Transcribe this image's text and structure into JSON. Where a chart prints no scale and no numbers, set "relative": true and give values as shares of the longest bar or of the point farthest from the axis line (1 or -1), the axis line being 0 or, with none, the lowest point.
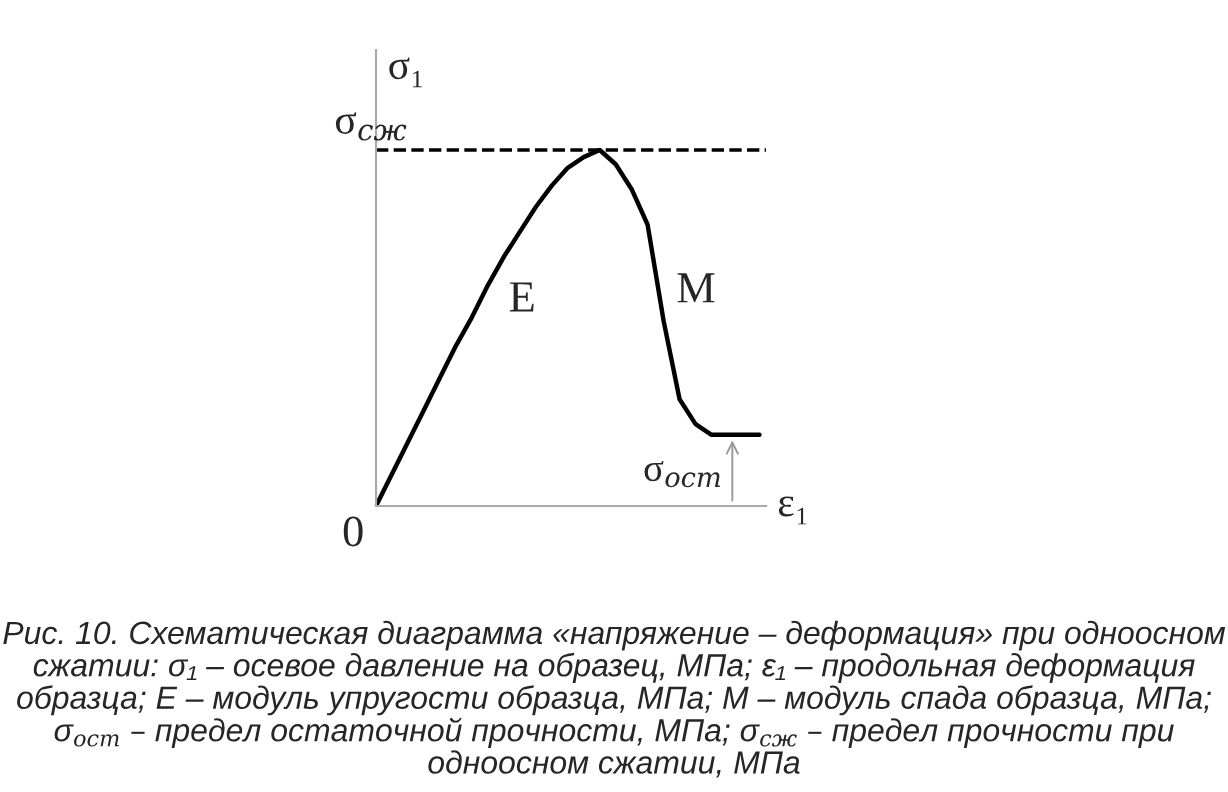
{
  "chart_data": {
    "type": "line",
    "relative": true,
    "marker": "none",
    "line_style": "solid",
    "xlabel": "ε₁",
    "ylabel": "σ₁",
    "categories": [
      null,
      null,
      null,
      null,
      null,
      null,
      null,
      null,
      null,
      null,
      null,
      null,
      null,
      null,
      null,
      null,
      null,
      null,
      null,
      null,
      null,
      null,
      null,
      null,
      null
    ],
    "series": [
      {
        "color": "#000000",
        "values": [
          0,
          0.09,
          0.18,
          0.27,
          0.36,
          0.45,
          0.53,
          0.62,
          0.7,
          0.77,
          0.84,
          0.9,
          0.95,
          0.98,
          1,
          0.96,
          0.89,
          0.79,
          0.52,
          0.3,
          0.23,
          0.2,
          0.2,
          0.2,
          0.2
        ]
      }
    ],
    "ref_lines": [
      {
        "axis": "y",
        "value": 1,
        "label": "σ$_{сж}$",
        "line_style": "dashed",
        "color": "#000000"
      }
    ],
    "annotations": [
      "0",
      "E",
      "M",
      "σ$_{ост}$",
      "Рис. 10. Схематическая диаграмма «напряжение – деформация» при одноосном сжатии: σ₁ – осевое давление на образец, МПа; ε₁ – продольная деформация образца; E – модуль упругости образца, МПа; M – модуль спада образца, МПа; σ$_{ост}$ – предел остаточной прочности, МПа; σ$_{сж}$ – предел прочности при одноосном сжатии, МПа"
    ]
  }
}
